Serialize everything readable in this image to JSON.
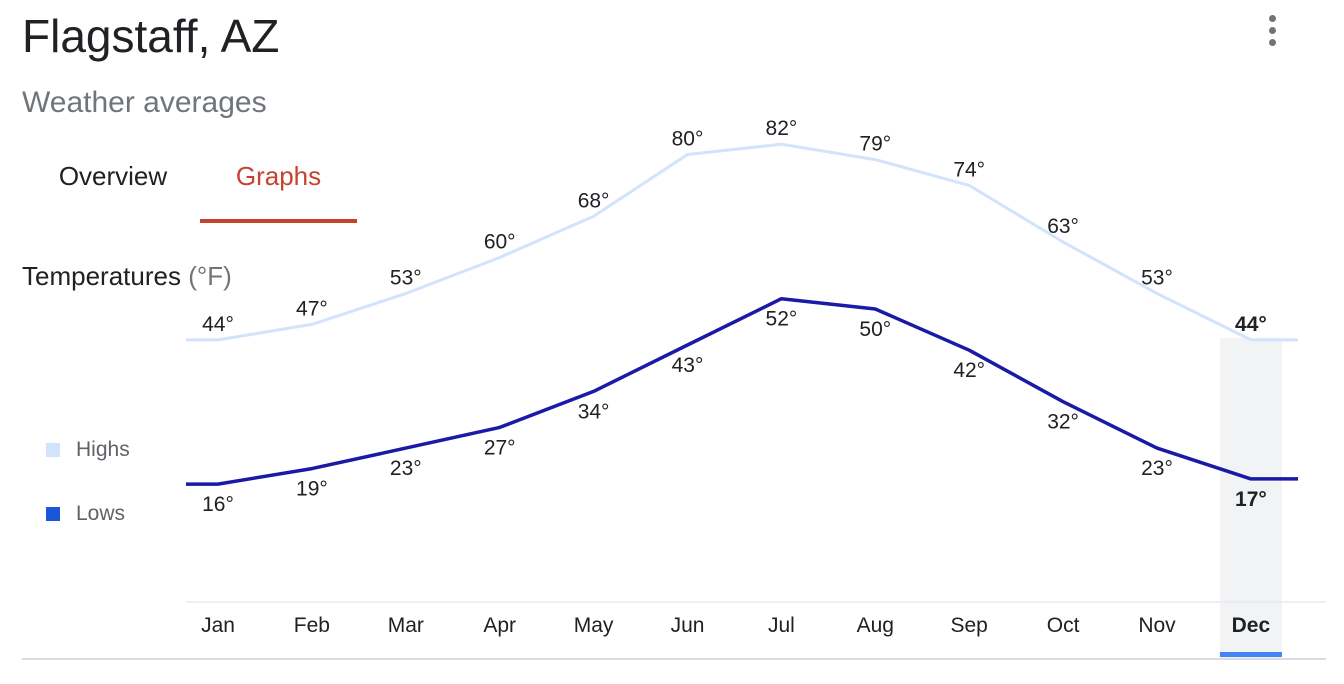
{
  "header": {
    "title": "Flagstaff, AZ",
    "subtitle": "Weather averages"
  },
  "tabs": [
    {
      "label": "Overview",
      "active": false
    },
    {
      "label": "Graphs",
      "active": true
    }
  ],
  "section": {
    "title": "Temperatures",
    "unit": "(°F)"
  },
  "colors": {
    "highs": "#d2e3fc",
    "lows": "#1a1aa6",
    "legend_lows": "#1a56db",
    "accent": "#c5432f",
    "selected_month": "#4285f4"
  },
  "chart_data": {
    "type": "line",
    "categories": [
      "Jan",
      "Feb",
      "Mar",
      "Apr",
      "May",
      "Jun",
      "Jul",
      "Aug",
      "Sep",
      "Oct",
      "Nov",
      "Dec"
    ],
    "series": [
      {
        "name": "Highs",
        "values": [
          44,
          47,
          53,
          60,
          68,
          80,
          82,
          79,
          74,
          63,
          53,
          44
        ]
      },
      {
        "name": "Lows",
        "values": [
          16,
          19,
          23,
          27,
          34,
          43,
          52,
          50,
          42,
          32,
          23,
          17
        ]
      }
    ],
    "selected": "Dec",
    "legend_position": "left",
    "grid": false
  }
}
